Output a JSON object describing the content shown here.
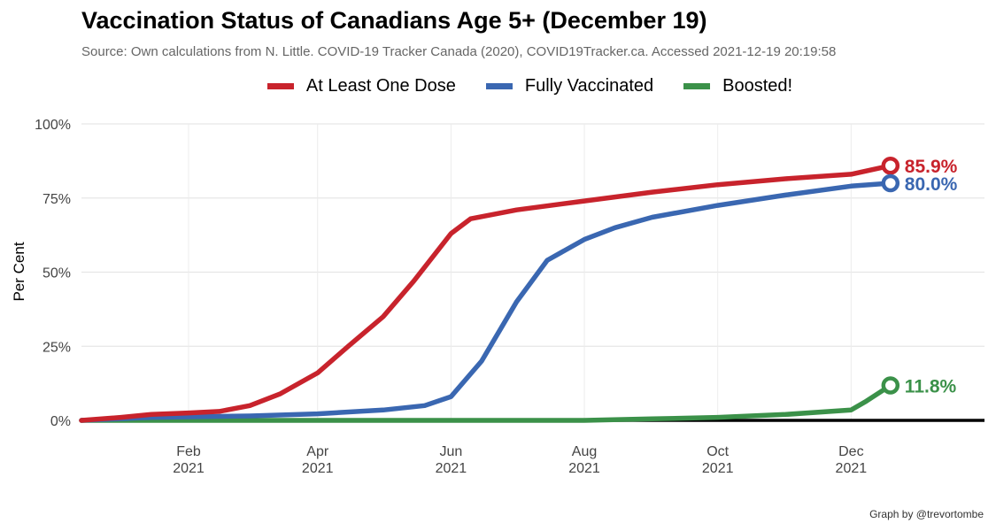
{
  "title": "Vaccination Status of Canadians Age 5+ (December 19)",
  "subtitle": "Source: Own calculations from N. Little. COVID-19 Tracker Canada (2020), COVID19Tracker.ca. Accessed  2021-12-19 20:19:58",
  "caption": "Graph by @trevortombe",
  "chart_data": {
    "type": "line",
    "title": "Vaccination Status of Canadians Age 5+ (December 19)",
    "ylabel": "Per Cent",
    "xlabel": "",
    "ylim": [
      0,
      100
    ],
    "xlim": [
      "2020-12-14",
      "2022-01-31"
    ],
    "y_ticks": [
      {
        "value": 0,
        "label": "0%"
      },
      {
        "value": 25,
        "label": "25%"
      },
      {
        "value": 50,
        "label": "50%"
      },
      {
        "value": 75,
        "label": "75%"
      },
      {
        "value": 100,
        "label": "100%"
      }
    ],
    "x_ticks": [
      {
        "date": "2021-02-01",
        "month": "Feb",
        "year": "2021"
      },
      {
        "date": "2021-04-01",
        "month": "Apr",
        "year": "2021"
      },
      {
        "date": "2021-06-01",
        "month": "Jun",
        "year": "2021"
      },
      {
        "date": "2021-08-01",
        "month": "Aug",
        "year": "2021"
      },
      {
        "date": "2021-10-01",
        "month": "Oct",
        "year": "2021"
      },
      {
        "date": "2021-12-01",
        "month": "Dec",
        "year": "2021"
      }
    ],
    "grid": true,
    "legend_position": "top",
    "series": [
      {
        "name": "At Least One Dose",
        "color": "#c8232c",
        "end_label": "85.9%",
        "points": [
          [
            "2020-12-14",
            0
          ],
          [
            "2021-01-01",
            1
          ],
          [
            "2021-01-15",
            2
          ],
          [
            "2021-02-01",
            2.5
          ],
          [
            "2021-02-15",
            3
          ],
          [
            "2021-03-01",
            5
          ],
          [
            "2021-03-15",
            9
          ],
          [
            "2021-04-01",
            16
          ],
          [
            "2021-04-15",
            25
          ],
          [
            "2021-05-01",
            35
          ],
          [
            "2021-05-15",
            47
          ],
          [
            "2021-06-01",
            63
          ],
          [
            "2021-06-10",
            68
          ],
          [
            "2021-07-01",
            71
          ],
          [
            "2021-08-01",
            74
          ],
          [
            "2021-09-01",
            77
          ],
          [
            "2021-10-01",
            79.5
          ],
          [
            "2021-11-01",
            81.5
          ],
          [
            "2021-12-01",
            83
          ],
          [
            "2021-12-19",
            85.9
          ]
        ]
      },
      {
        "name": "Fully Vaccinated",
        "color": "#3a67b1",
        "end_label": "80.0%",
        "points": [
          [
            "2020-12-14",
            0
          ],
          [
            "2021-01-15",
            1
          ],
          [
            "2021-03-01",
            1.5
          ],
          [
            "2021-04-01",
            2.2
          ],
          [
            "2021-05-01",
            3.5
          ],
          [
            "2021-05-20",
            5
          ],
          [
            "2021-06-01",
            8
          ],
          [
            "2021-06-15",
            20
          ],
          [
            "2021-07-01",
            40
          ],
          [
            "2021-07-15",
            54
          ],
          [
            "2021-08-01",
            61
          ],
          [
            "2021-08-15",
            65
          ],
          [
            "2021-09-01",
            68.5
          ],
          [
            "2021-10-01",
            72.5
          ],
          [
            "2021-11-01",
            76
          ],
          [
            "2021-12-01",
            79
          ],
          [
            "2021-12-19",
            80.0
          ]
        ]
      },
      {
        "name": "Boosted!",
        "color": "#3b9149",
        "end_label": "11.8%",
        "points": [
          [
            "2020-12-14",
            0
          ],
          [
            "2021-08-01",
            0
          ],
          [
            "2021-09-01",
            0.5
          ],
          [
            "2021-10-01",
            1
          ],
          [
            "2021-11-01",
            2
          ],
          [
            "2021-12-01",
            3.5
          ],
          [
            "2021-12-08",
            6.5
          ],
          [
            "2021-12-19",
            11.8
          ]
        ]
      }
    ]
  }
}
